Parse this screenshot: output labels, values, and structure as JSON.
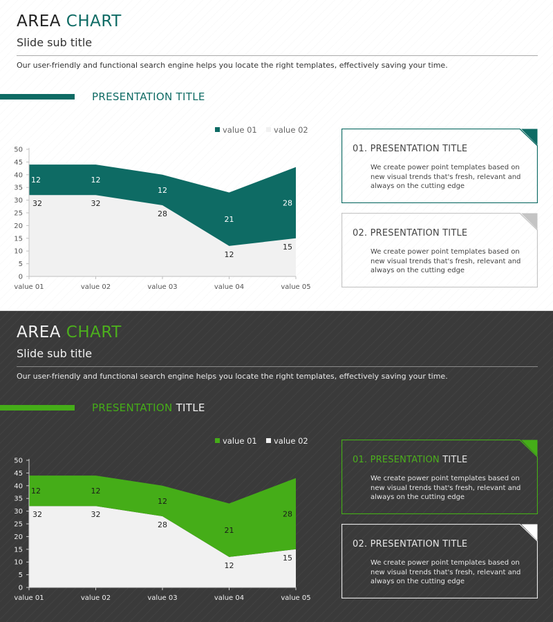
{
  "slides": [
    {
      "theme": "light",
      "title_a": "AREA",
      "title_b": "CHART",
      "subtitle": "Slide sub title",
      "description": "Our user-friendly and functional search engine helps you locate the right templates, effectively saving your time.",
      "presentation_title_a": "PRESENTATION TITLE",
      "presentation_title_b": "",
      "colors": {
        "accent": "#0e6b64",
        "series2": "#f1f1f1"
      },
      "cards": [
        {
          "title_a": "01. PRESENTATION TITLE",
          "title_b": "",
          "body": "We create power point templates based on new visual trends that's fresh, relevant and always on the cutting edge"
        },
        {
          "title_a": "02. PRESENTATION TITLE",
          "title_b": "",
          "body": "We create power point templates based on new visual trends that's fresh, relevant and always on the cutting edge"
        }
      ]
    },
    {
      "theme": "dark",
      "title_a": "AREA",
      "title_b": "CHART",
      "subtitle": "Slide sub title",
      "description": "Our user-friendly and functional search engine helps you locate the right templates, effectively saving your time.",
      "presentation_title_a": "PRESENTATION",
      "presentation_title_b": "TITLE",
      "colors": {
        "accent": "#45ad18",
        "series2": "#f1f1f1"
      },
      "cards": [
        {
          "title_a": "01. PRESENTATION",
          "title_b": "TITLE",
          "body": "We create power point templates based on new visual trends that's fresh, relevant and always on the cutting edge"
        },
        {
          "title_a": "02. PRESENTATION TITLE",
          "title_b": "",
          "body": "We create power point templates based on new visual trends that's fresh, relevant and always on the cutting edge"
        }
      ]
    }
  ],
  "chart_data": [
    {
      "type": "area",
      "stacked": true,
      "categories": [
        "value 01",
        "value 02",
        "value 03",
        "value 04",
        "value 05"
      ],
      "series": [
        {
          "name": "value 02",
          "values": [
            32,
            32,
            28,
            12,
            15
          ]
        },
        {
          "name": "value 01",
          "values": [
            12,
            12,
            12,
            21,
            28
          ]
        }
      ],
      "legend": [
        "value 01",
        "value 02"
      ],
      "y_ticks": [
        0,
        5,
        10,
        15,
        20,
        25,
        30,
        35,
        40,
        45,
        50
      ],
      "ylim": [
        0,
        50
      ],
      "grid": false,
      "legend_position": "top"
    },
    {
      "type": "area",
      "stacked": true,
      "categories": [
        "value 01",
        "value 02",
        "value 03",
        "value 04",
        "value 05"
      ],
      "series": [
        {
          "name": "value 02",
          "values": [
            32,
            32,
            28,
            12,
            15
          ]
        },
        {
          "name": "value 01",
          "values": [
            12,
            12,
            12,
            21,
            28
          ]
        }
      ],
      "legend": [
        "value 01",
        "value 02"
      ],
      "y_ticks": [
        0,
        5,
        10,
        15,
        20,
        25,
        30,
        35,
        40,
        45,
        50
      ],
      "ylim": [
        0,
        50
      ],
      "grid": false,
      "legend_position": "top"
    }
  ]
}
